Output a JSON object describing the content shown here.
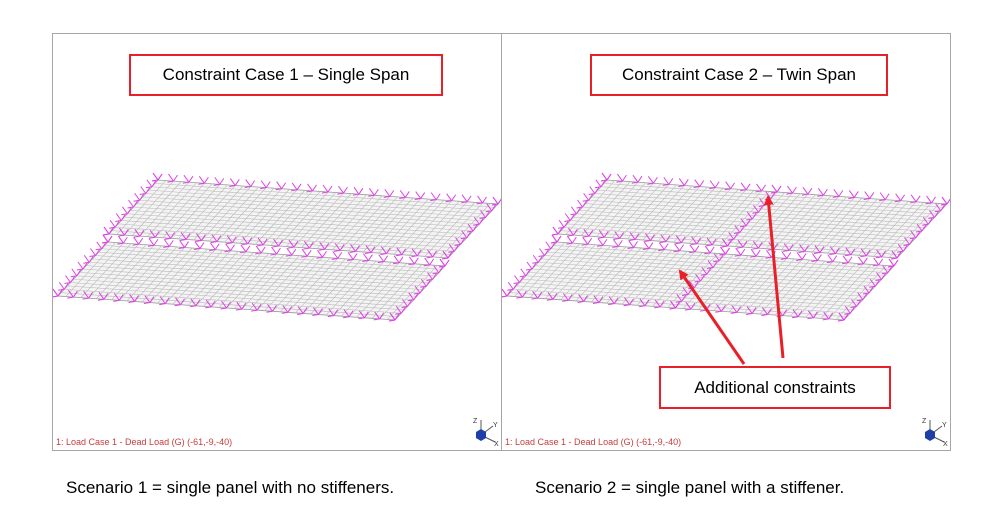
{
  "panes": [
    {
      "title": "Constraint Case 1 – Single Span",
      "status": "1: Load Case 1 - Dead Load (G) (-61,-9,-40)",
      "mid_support": false,
      "axis": {
        "z": "Z",
        "y": "Y",
        "x": "X"
      }
    },
    {
      "title": "Constraint Case 2 – Twin Span",
      "status": "1: Load Case 1 - Dead Load (G) (-61,-9,-40)",
      "mid_support": true,
      "annotation": "Additional constraints",
      "axis": {
        "z": "Z",
        "y": "Y",
        "x": "X"
      }
    }
  ],
  "captions": {
    "left": "Scenario 1 = single panel with no stiffeners.",
    "right": "Scenario 2 = single panel with a stiffener."
  },
  "colors": {
    "mesh": "#b9b9b9",
    "constraint": "#e040e8",
    "annotation": "#e8202a",
    "status": "#c83c3c",
    "axis_node": "#1f3fa8"
  }
}
